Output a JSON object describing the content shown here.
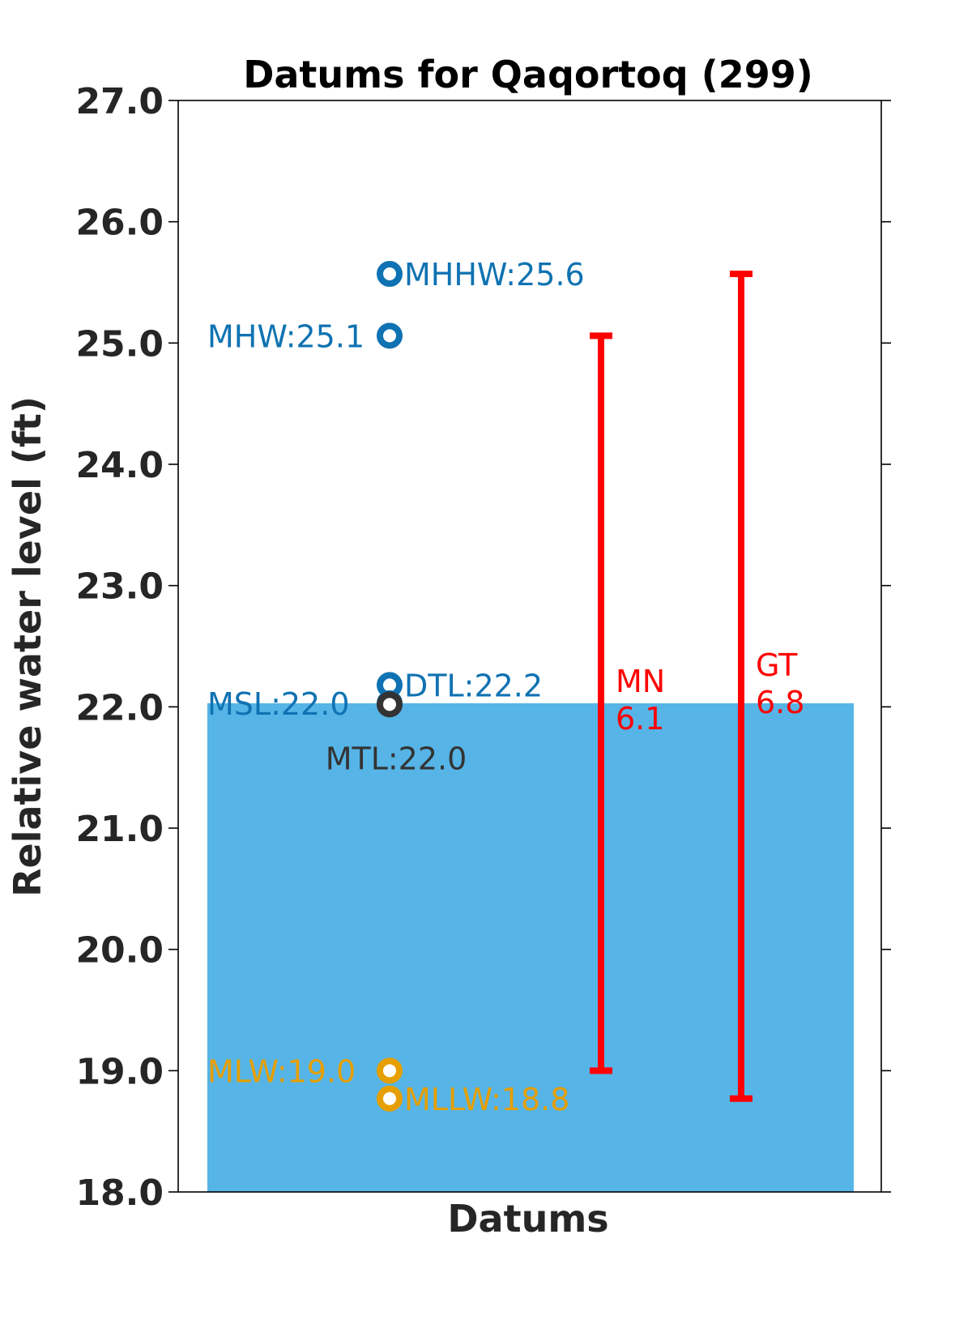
{
  "chart_data": {
    "type": "bar",
    "title": "Datums for Qaqortoq (299)",
    "xlabel": "Datums",
    "ylabel": "Relative water level (ft)",
    "ylim": [
      18.0,
      27.0
    ],
    "yticks": [
      "18.0",
      "19.0",
      "20.0",
      "21.0",
      "22.0",
      "23.0",
      "24.0",
      "25.0",
      "26.0",
      "27.0"
    ],
    "grid": false,
    "bar": {
      "value": 22.03,
      "color": "#56b4e6"
    },
    "datums": [
      {
        "name": "MHHW",
        "label": "MHHW:25.6",
        "value": 25.57,
        "color": "#0f72b2",
        "label_side": "right"
      },
      {
        "name": "MHW",
        "label": "MHW:25.1",
        "value": 25.06,
        "color": "#0f72b2",
        "label_side": "left"
      },
      {
        "name": "DTL",
        "label": "DTL:22.2",
        "value": 22.18,
        "color": "#0f72b2",
        "label_side": "right"
      },
      {
        "name": "MSL",
        "label": "MSL:22.0",
        "value": 22.03,
        "color": "#0f72b2",
        "label_side": "left"
      },
      {
        "name": "MTL",
        "label": "MTL:22.0",
        "value": 22.02,
        "color": "#333333",
        "label_side": "below"
      },
      {
        "name": "MLW",
        "label": "MLW:19.0",
        "value": 19.0,
        "color": "#e69f00",
        "label_side": "left"
      },
      {
        "name": "MLLW",
        "label": "MLLW:18.8",
        "value": 18.77,
        "color": "#e69f00",
        "label_side": "right"
      }
    ],
    "ranges": [
      {
        "name": "MN",
        "label_name": "MN",
        "label_value": "6.1",
        "low": 19.0,
        "high": 25.06,
        "color": "#ff0000"
      },
      {
        "name": "GT",
        "label_name": "GT",
        "label_value": "6.8",
        "low": 18.77,
        "high": 25.57,
        "color": "#ff0000"
      }
    ]
  }
}
